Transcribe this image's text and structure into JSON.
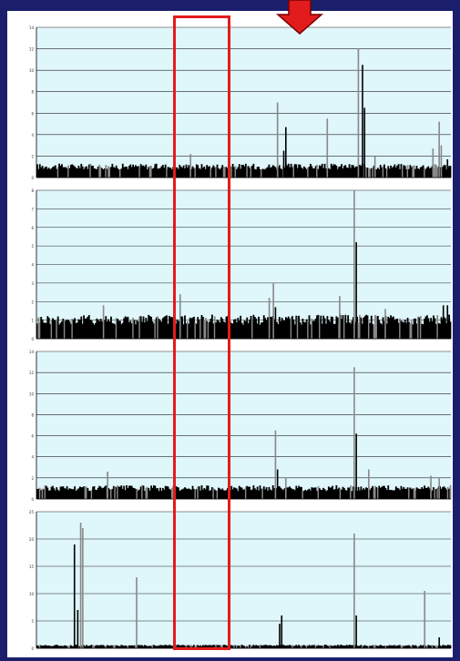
{
  "colors": {
    "background": "#1b1f6b",
    "plot_bg": "#dff6fb",
    "bar_dark": "#000000",
    "bar_light": "#888888",
    "highlight": "#e21c1c",
    "arrow": "#e21c1c"
  },
  "icons": {
    "arrow": "down-arrow-icon"
  },
  "chart_data": [
    {
      "type": "bar",
      "ylim": [
        0,
        14
      ],
      "yticks": [
        "0",
        "2",
        "4",
        "6",
        "8",
        "10",
        "12",
        "14"
      ],
      "baseline": 1,
      "grid": true,
      "peaks": [
        {
          "x": 0.58,
          "value": 7.0,
          "shade": "light"
        },
        {
          "x": 0.6,
          "value": 4.7,
          "shade": "dark"
        },
        {
          "x": 0.595,
          "value": 2.5,
          "shade": "dark"
        },
        {
          "x": 0.7,
          "value": 5.5,
          "shade": "light"
        },
        {
          "x": 0.775,
          "value": 12.0,
          "shade": "light"
        },
        {
          "x": 0.785,
          "value": 10.5,
          "shade": "dark"
        },
        {
          "x": 0.79,
          "value": 6.5,
          "shade": "dark"
        },
        {
          "x": 0.815,
          "value": 2.0,
          "shade": "light"
        },
        {
          "x": 0.955,
          "value": 2.7,
          "shade": "light"
        },
        {
          "x": 0.97,
          "value": 5.2,
          "shade": "light"
        },
        {
          "x": 0.975,
          "value": 3.0,
          "shade": "light"
        },
        {
          "x": 0.37,
          "value": 2.2,
          "shade": "light"
        },
        {
          "x": 0.99,
          "value": 1.7,
          "shade": "dark"
        }
      ]
    },
    {
      "type": "bar",
      "ylim": [
        0,
        8
      ],
      "yticks": [
        "0",
        "1",
        "2",
        "3",
        "4",
        "5",
        "6",
        "7",
        "8"
      ],
      "baseline": 1,
      "grid": true,
      "peaks": [
        {
          "x": 0.56,
          "value": 2.2,
          "shade": "light"
        },
        {
          "x": 0.57,
          "value": 3.0,
          "shade": "light"
        },
        {
          "x": 0.575,
          "value": 1.7,
          "shade": "dark"
        },
        {
          "x": 0.345,
          "value": 2.4,
          "shade": "light"
        },
        {
          "x": 0.16,
          "value": 1.8,
          "shade": "light"
        },
        {
          "x": 0.73,
          "value": 2.3,
          "shade": "light"
        },
        {
          "x": 0.765,
          "value": 8.0,
          "shade": "light"
        },
        {
          "x": 0.77,
          "value": 5.2,
          "shade": "dark"
        },
        {
          "x": 0.84,
          "value": 1.6,
          "shade": "light"
        },
        {
          "x": 0.98,
          "value": 1.8,
          "shade": "dark"
        },
        {
          "x": 0.99,
          "value": 1.8,
          "shade": "dark"
        }
      ]
    },
    {
      "type": "bar",
      "ylim": [
        0,
        14
      ],
      "yticks": [
        "0",
        "2",
        "4",
        "6",
        "8",
        "10",
        "12",
        "14"
      ],
      "baseline": 1,
      "grid": true,
      "peaks": [
        {
          "x": 0.575,
          "value": 6.5,
          "shade": "light"
        },
        {
          "x": 0.58,
          "value": 2.8,
          "shade": "dark"
        },
        {
          "x": 0.6,
          "value": 2.0,
          "shade": "light"
        },
        {
          "x": 0.17,
          "value": 2.6,
          "shade": "light"
        },
        {
          "x": 0.765,
          "value": 12.5,
          "shade": "light"
        },
        {
          "x": 0.77,
          "value": 6.2,
          "shade": "dark"
        },
        {
          "x": 0.8,
          "value": 2.8,
          "shade": "light"
        },
        {
          "x": 0.95,
          "value": 2.2,
          "shade": "light"
        },
        {
          "x": 0.97,
          "value": 2.0,
          "shade": "light"
        }
      ]
    },
    {
      "type": "bar",
      "ylim": [
        0,
        25
      ],
      "yticks": [
        "0",
        "5",
        "10",
        "15",
        "20",
        "25"
      ],
      "baseline": 0.5,
      "grid": true,
      "peaks": [
        {
          "x": 0.09,
          "value": 19.0,
          "shade": "dark"
        },
        {
          "x": 0.105,
          "value": 23.0,
          "shade": "light"
        },
        {
          "x": 0.098,
          "value": 7.0,
          "shade": "dark"
        },
        {
          "x": 0.11,
          "value": 22.0,
          "shade": "light"
        },
        {
          "x": 0.24,
          "value": 13.0,
          "shade": "light"
        },
        {
          "x": 0.59,
          "value": 6.0,
          "shade": "dark"
        },
        {
          "x": 0.585,
          "value": 4.5,
          "shade": "dark"
        },
        {
          "x": 0.765,
          "value": 21.0,
          "shade": "light"
        },
        {
          "x": 0.77,
          "value": 6.0,
          "shade": "dark"
        },
        {
          "x": 0.935,
          "value": 10.5,
          "shade": "light"
        },
        {
          "x": 0.97,
          "value": 2.0,
          "shade": "dark"
        }
      ]
    }
  ]
}
